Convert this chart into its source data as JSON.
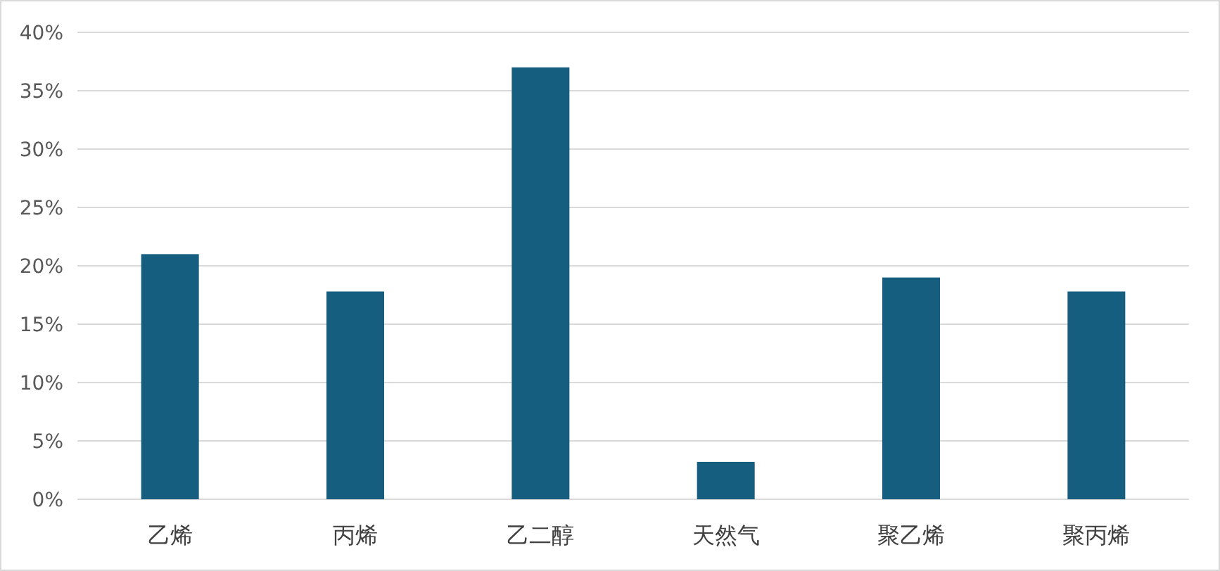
{
  "chart_data": {
    "type": "bar",
    "categories": [
      "乙烯",
      "丙烯",
      "乙二醇",
      "天然气",
      "聚乙烯",
      "聚丙烯"
    ],
    "values": [
      21,
      17.8,
      37,
      3.2,
      19,
      17.8
    ],
    "color": "#165e80",
    "ylim": [
      0,
      40
    ],
    "yticks": [
      {
        "value": 0,
        "label": "0%"
      },
      {
        "value": 5,
        "label": "5%"
      },
      {
        "value": 10,
        "label": "10%"
      },
      {
        "value": 15,
        "label": "15%"
      },
      {
        "value": 20,
        "label": "20%"
      },
      {
        "value": 25,
        "label": "25%"
      },
      {
        "value": 30,
        "label": "30%"
      },
      {
        "value": 35,
        "label": "35%"
      },
      {
        "value": 40,
        "label": "40%"
      }
    ],
    "grid": "y"
  }
}
